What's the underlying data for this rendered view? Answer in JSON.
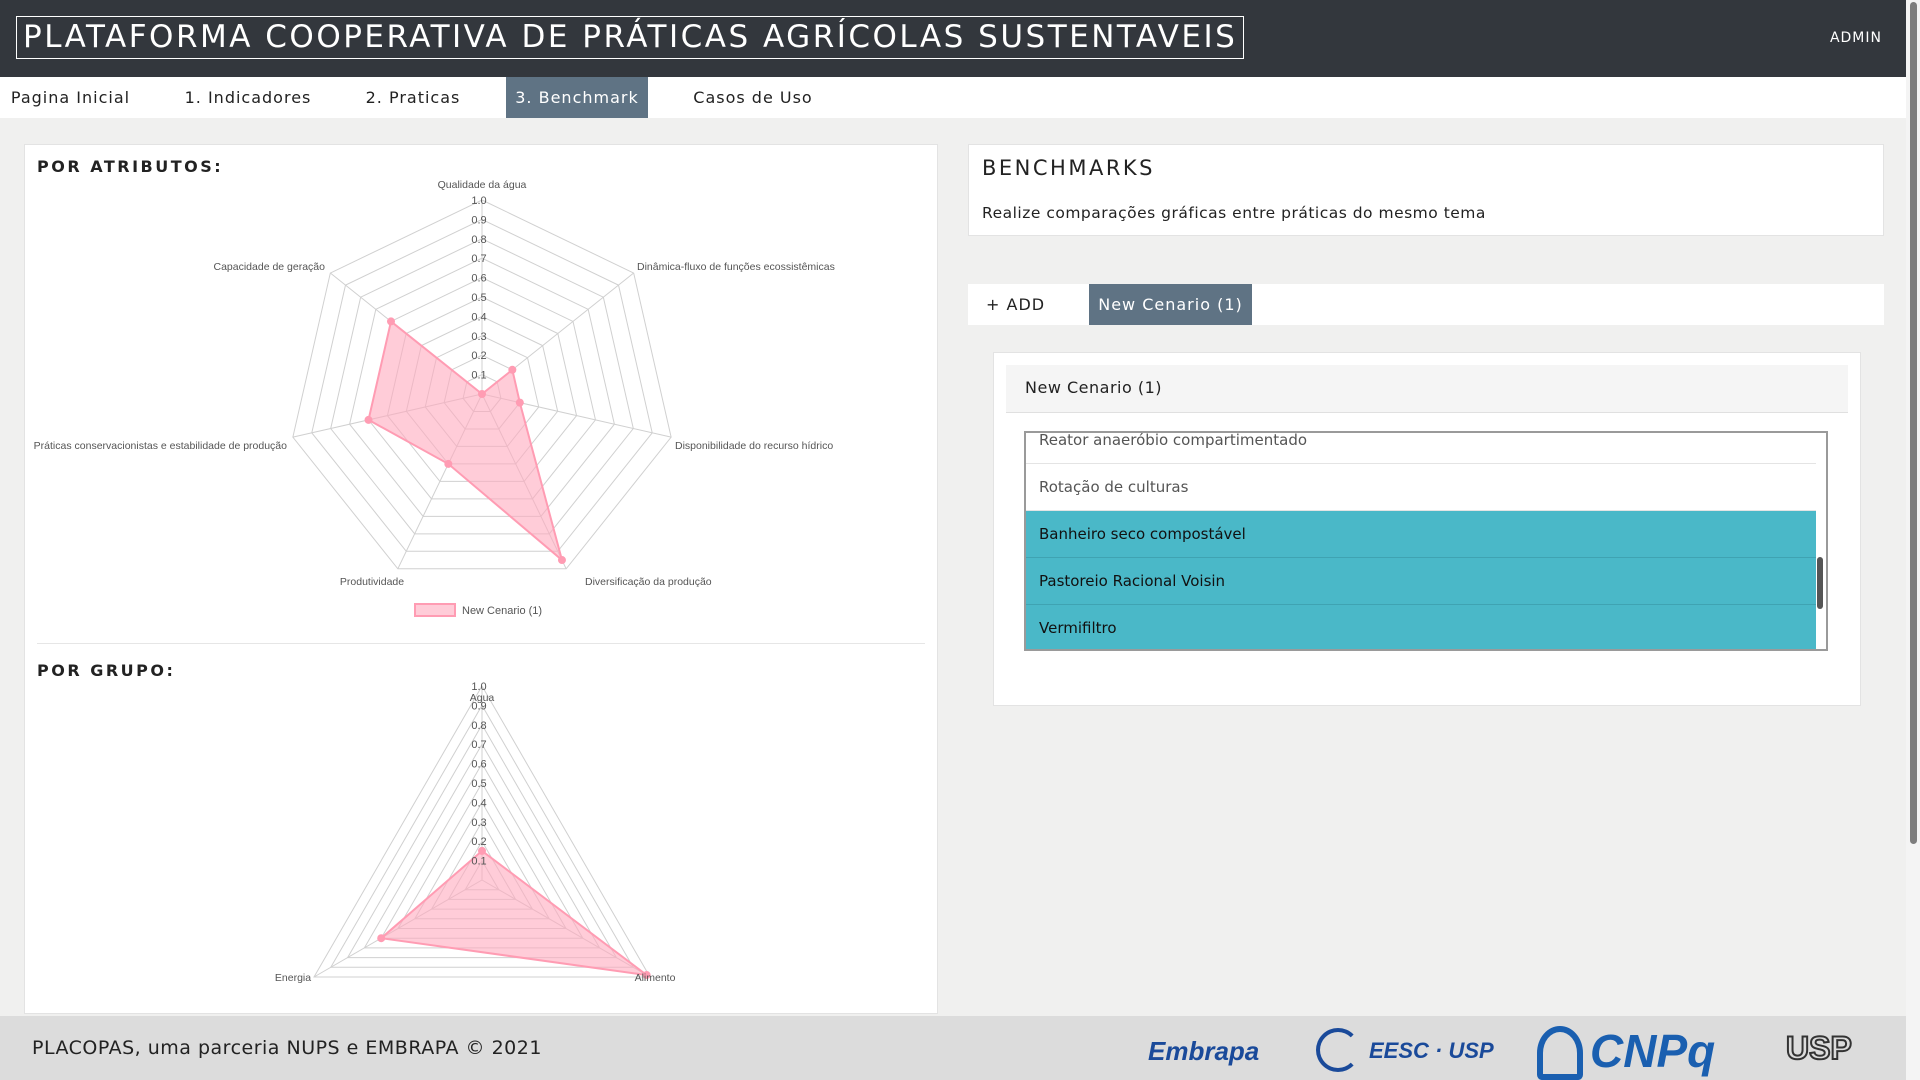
{
  "header": {
    "title": "PLATAFORMA COOPERATIVA DE PRÁTICAS AGRÍCOLAS SUSTENTAVEIS",
    "user": "ADMIN"
  },
  "nav": {
    "items": [
      {
        "label": "Pagina Inicial"
      },
      {
        "label": "1. Indicadores"
      },
      {
        "label": "2. Praticas"
      },
      {
        "label": "3. Benchmark"
      },
      {
        "label": "Casos de Uso"
      }
    ],
    "active_index": 3
  },
  "left": {
    "section1_title": "POR ATRIBUTOS:",
    "section2_title": "POR GRUPO:"
  },
  "right": {
    "title": "BENCHMARKS",
    "subtitle": "Realize comparações gráficas entre práticas do mesmo tema",
    "add_tab": "+ ADD",
    "scenario_tab": "New Cenario (1)",
    "scenario_header": "New Cenario (1)",
    "options": [
      {
        "label": "Reator anaeróbio compartimentado",
        "selected": false
      },
      {
        "label": "Rotação de culturas",
        "selected": false
      },
      {
        "label": "Banheiro seco compostável",
        "selected": true
      },
      {
        "label": "Pastoreio Racional Voisin",
        "selected": true
      },
      {
        "label": "Vermifiltro",
        "selected": true
      }
    ]
  },
  "footer": {
    "text": "PLACOPAS, uma parceria NUPS e EMBRAPA © 2021",
    "logos": [
      "Embrapa",
      "EESC · USP",
      "CNPq",
      "USP"
    ]
  },
  "colors": {
    "nav_active": "#5f7384",
    "selected_option": "#4ab8c8",
    "series_fill": "#ffb6c6",
    "series_line": "#ff9cb3"
  },
  "chart_data": [
    {
      "type": "radar",
      "axes": [
        "Qualidade da água",
        "Dinâmica-fluxo de funções ecossistêmicas",
        "Disponibilidade do recurso hídrico",
        "Diversificação da produção",
        "Produtividade",
        "Práticas conservacionistas e estabilidade de produção",
        "Capacidade de geração"
      ],
      "ticks": [
        "0.1",
        "0.2",
        "0.3",
        "0.4",
        "0.5",
        "0.6",
        "0.7",
        "0.8",
        "0.9",
        "1.0"
      ],
      "range": [
        0,
        1
      ],
      "series": [
        {
          "name": "New Cenario (1)",
          "values": [
            0.0,
            0.2,
            0.2,
            0.95,
            0.4,
            0.6,
            0.6
          ]
        }
      ],
      "legend": "bottom"
    },
    {
      "type": "radar",
      "axes": [
        "Agua",
        "Alimento",
        "Energia"
      ],
      "ticks": [
        "0.1",
        "0.2",
        "0.3",
        "0.4",
        "0.5",
        "0.6",
        "0.7",
        "0.8",
        "0.9",
        "1.0"
      ],
      "range": [
        0,
        1
      ],
      "series": [
        {
          "name": "New Cenario (1)",
          "values": [
            0.15,
            0.98,
            0.6
          ]
        }
      ]
    }
  ]
}
